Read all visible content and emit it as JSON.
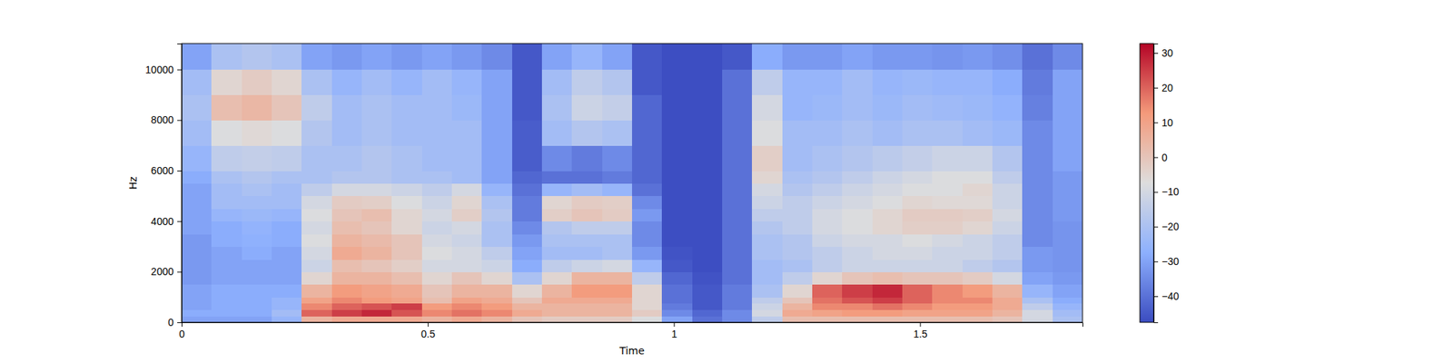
{
  "chart_data": {
    "type": "heatmap",
    "x_label": "Time",
    "y_label": "Hz",
    "x": [
      0,
      0.061,
      0.122,
      0.183,
      0.244,
      0.305,
      0.366,
      0.427,
      0.488,
      0.549,
      0.61,
      0.671,
      0.732,
      0.793,
      0.854,
      0.915,
      0.976,
      1.037,
      1.098,
      1.159,
      1.22,
      1.281,
      1.342,
      1.403,
      1.464,
      1.525,
      1.586,
      1.647,
      1.708,
      1.769,
      1.83
    ],
    "y": [
      0,
      250,
      500,
      750,
      1000,
      1500,
      2000,
      2500,
      3000,
      3500,
      4000,
      4500,
      5000,
      5500,
      6000,
      7000,
      8000,
      9000,
      10000,
      11025
    ],
    "values": [
      [
        -30,
        -30,
        -30,
        -25,
        5,
        8,
        8,
        8,
        5,
        8,
        5,
        0,
        -2,
        -2,
        -2,
        -8,
        -30,
        -40,
        -35,
        -15,
        2,
        2,
        2,
        2,
        2,
        2,
        2,
        0,
        -10,
        -20
      ],
      [
        -28,
        -28,
        -28,
        -22,
        20,
        25,
        28,
        22,
        15,
        18,
        15,
        8,
        5,
        5,
        5,
        -2,
        -35,
        -42,
        -35,
        -10,
        8,
        10,
        12,
        12,
        10,
        10,
        10,
        5,
        -10,
        -22
      ],
      [
        -30,
        -28,
        -28,
        -25,
        15,
        20,
        22,
        25,
        12,
        15,
        12,
        5,
        5,
        5,
        5,
        -5,
        -38,
        -45,
        -38,
        -12,
        5,
        15,
        15,
        18,
        15,
        12,
        12,
        8,
        -15,
        -25
      ],
      [
        -30,
        -28,
        -28,
        -25,
        10,
        15,
        12,
        10,
        2,
        10,
        8,
        0,
        8,
        8,
        8,
        -5,
        -40,
        -45,
        -38,
        -15,
        0,
        18,
        22,
        25,
        20,
        15,
        15,
        8,
        -20,
        -28
      ],
      [
        -30,
        -28,
        -28,
        -28,
        5,
        12,
        10,
        8,
        0,
        5,
        5,
        -5,
        5,
        12,
        12,
        -5,
        -40,
        -45,
        -38,
        -20,
        -5,
        20,
        25,
        28,
        20,
        15,
        12,
        5,
        -25,
        -30
      ],
      [
        -32,
        -30,
        -30,
        -30,
        -5,
        5,
        5,
        2,
        -5,
        0,
        -5,
        -20,
        -5,
        5,
        5,
        -15,
        -42,
        -46,
        -40,
        -22,
        -15,
        -5,
        0,
        2,
        0,
        0,
        -2,
        -10,
        -30,
        -32
      ],
      [
        -32,
        -30,
        -30,
        -30,
        -12,
        2,
        0,
        -3,
        -10,
        -10,
        -12,
        -28,
        -15,
        -12,
        -10,
        -25,
        -45,
        -47,
        -40,
        -22,
        -20,
        -15,
        -12,
        -12,
        -12,
        -12,
        -15,
        -18,
        -32,
        -33
      ],
      [
        -32,
        -30,
        -28,
        -30,
        -10,
        8,
        5,
        0,
        -8,
        -10,
        -15,
        -30,
        -22,
        -22,
        -20,
        -32,
        -46,
        -47,
        -40,
        -20,
        -18,
        -15,
        -12,
        -10,
        -10,
        -12,
        -12,
        -15,
        -32,
        -33
      ],
      [
        -32,
        -28,
        -27,
        -28,
        -8,
        5,
        3,
        0,
        -10,
        -12,
        -20,
        -32,
        -20,
        -20,
        -20,
        -35,
        -47,
        -47,
        -40,
        -20,
        -18,
        -12,
        -10,
        -10,
        -8,
        -10,
        -12,
        -15,
        -35,
        -33
      ],
      [
        -30,
        -28,
        -26,
        -28,
        -10,
        2,
        0,
        -5,
        -12,
        -10,
        -20,
        -35,
        -18,
        -15,
        -15,
        -35,
        -47,
        -47,
        -40,
        -18,
        -15,
        -10,
        -8,
        -5,
        -3,
        -3,
        -5,
        -12,
        -35,
        -33
      ],
      [
        -30,
        -25,
        -24,
        -25,
        -8,
        0,
        2,
        -5,
        -10,
        -3,
        -18,
        -38,
        -3,
        0,
        -2,
        -32,
        -47,
        -47,
        -40,
        -15,
        -15,
        -10,
        -8,
        -5,
        -2,
        -2,
        -3,
        -10,
        -35,
        -32
      ],
      [
        -30,
        -22,
        -22,
        -22,
        -10,
        -2,
        -3,
        -8,
        -12,
        -5,
        -20,
        -38,
        -5,
        -2,
        -3,
        -35,
        -47,
        -47,
        -40,
        -12,
        -15,
        -12,
        -10,
        -8,
        -5,
        -6,
        -6,
        -12,
        -35,
        -32
      ],
      [
        -30,
        -22,
        -20,
        -22,
        -15,
        -10,
        -10,
        -12,
        -15,
        -10,
        -25,
        -40,
        -25,
        -22,
        -25,
        -40,
        -47,
        -47,
        -40,
        -10,
        -18,
        -15,
        -12,
        -10,
        -8,
        -8,
        -5,
        -12,
        -35,
        -32
      ],
      [
        -28,
        -20,
        -18,
        -20,
        -20,
        -18,
        -18,
        -20,
        -20,
        -22,
        -30,
        -42,
        -40,
        -40,
        -38,
        -42,
        -47,
        -47,
        -40,
        -5,
        -20,
        -18,
        -15,
        -12,
        -10,
        -8,
        -8,
        -15,
        -35,
        -32
      ],
      [
        -25,
        -15,
        -14,
        -15,
        -20,
        -20,
        -18,
        -20,
        -22,
        -22,
        -30,
        -44,
        -35,
        -38,
        -35,
        -42,
        -47,
        -47,
        -40,
        -3,
        -22,
        -20,
        -18,
        -16,
        -14,
        -12,
        -12,
        -18,
        -35,
        -30
      ],
      [
        -22,
        -8,
        -6,
        -8,
        -18,
        -22,
        -20,
        -22,
        -22,
        -22,
        -30,
        -44,
        -22,
        -18,
        -20,
        -42,
        -47,
        -47,
        -40,
        -8,
        -22,
        -22,
        -20,
        -22,
        -20,
        -20,
        -22,
        -24,
        -35,
        -30
      ],
      [
        -20,
        2,
        4,
        0,
        -15,
        -22,
        -20,
        -22,
        -22,
        -24,
        -30,
        -45,
        -20,
        -12,
        -14,
        -42,
        -47,
        -47,
        -40,
        -10,
        -25,
        -24,
        -22,
        -24,
        -22,
        -23,
        -24,
        -26,
        -37,
        -30
      ],
      [
        -22,
        -5,
        -2,
        -5,
        -20,
        -25,
        -22,
        -25,
        -22,
        -25,
        -30,
        -45,
        -22,
        -15,
        -18,
        -45,
        -47,
        -47,
        -40,
        -15,
        -25,
        -25,
        -22,
        -25,
        -24,
        -25,
        -25,
        -28,
        -38,
        -30
      ],
      [
        -30,
        -20,
        -18,
        -20,
        -30,
        -32,
        -30,
        -32,
        -30,
        -32,
        -35,
        -45,
        -30,
        -25,
        -30,
        -45,
        -47,
        -47,
        -45,
        -28,
        -32,
        -32,
        -30,
        -32,
        -32,
        -33,
        -32,
        -34,
        -40,
        -35
      ]
    ],
    "xlim": [
      0,
      1.83
    ],
    "ylim": [
      0,
      11025
    ],
    "xticks": [
      0,
      0.5,
      1,
      1.5
    ],
    "yticks": [
      0,
      2000,
      4000,
      6000,
      8000,
      10000
    ],
    "colorbar": {
      "range": [
        -47.5,
        32.7
      ],
      "ticks": [
        -40,
        -30,
        -20,
        -10,
        0,
        10,
        20,
        30
      ]
    }
  }
}
